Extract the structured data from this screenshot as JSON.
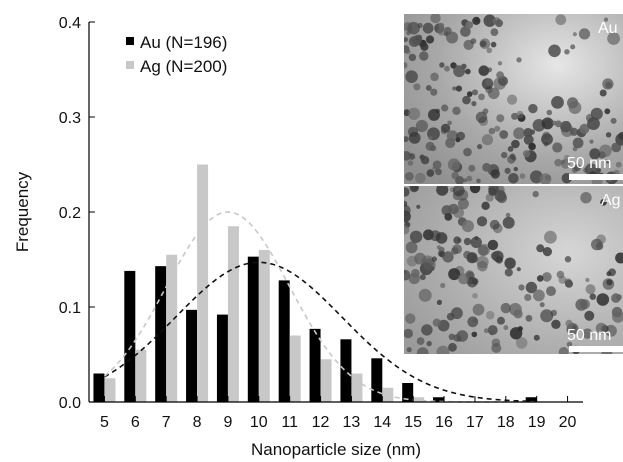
{
  "chart_data": {
    "type": "bar",
    "xlabel": "Nanoparticle size (nm)",
    "ylabel": "Frequency",
    "ylim": [
      0,
      0.4
    ],
    "xlim": [
      4.5,
      20.5
    ],
    "y_ticks": [
      "0.0",
      "0.1",
      "0.2",
      "0.3",
      "0.4"
    ],
    "x_ticks": [
      "5",
      "6",
      "7",
      "8",
      "9",
      "10",
      "11",
      "12",
      "13",
      "14",
      "15",
      "16",
      "17",
      "18",
      "19",
      "20"
    ],
    "legend_position": "top-left",
    "grid": false,
    "series": [
      {
        "name": "Au (N=196)",
        "color": "#000000",
        "x": [
          5,
          6,
          7,
          8,
          9,
          10,
          11,
          12,
          13,
          14,
          15,
          16,
          17,
          18,
          19
        ],
        "values": [
          0.03,
          0.138,
          0.143,
          0.097,
          0.092,
          0.153,
          0.128,
          0.077,
          0.066,
          0.046,
          0.02,
          0.005,
          0.0,
          0.0,
          0.005
        ],
        "fit": {
          "type": "gaussian",
          "mean": 10.0,
          "sigma": 2.7,
          "peak": 0.147,
          "style": "dashed",
          "color": "#111111"
        }
      },
      {
        "name": "Ag (N=200)",
        "color": "#c8c8c8",
        "x": [
          5,
          6,
          7,
          8,
          9,
          10,
          11,
          12,
          13,
          14,
          15,
          16,
          17,
          18,
          19
        ],
        "values": [
          0.025,
          0.055,
          0.155,
          0.25,
          0.185,
          0.16,
          0.07,
          0.045,
          0.03,
          0.015,
          0.005,
          0.0,
          0.0,
          0.0,
          0.0
        ],
        "fit": {
          "type": "gaussian",
          "mean": 9.0,
          "sigma": 2.0,
          "peak": 0.2,
          "style": "dashed",
          "color": "#c8c8c8"
        }
      }
    ],
    "insets": [
      {
        "label": "Au",
        "scale_bar": "50 nm"
      },
      {
        "label": "Ag",
        "scale_bar": "50 nm"
      }
    ]
  }
}
